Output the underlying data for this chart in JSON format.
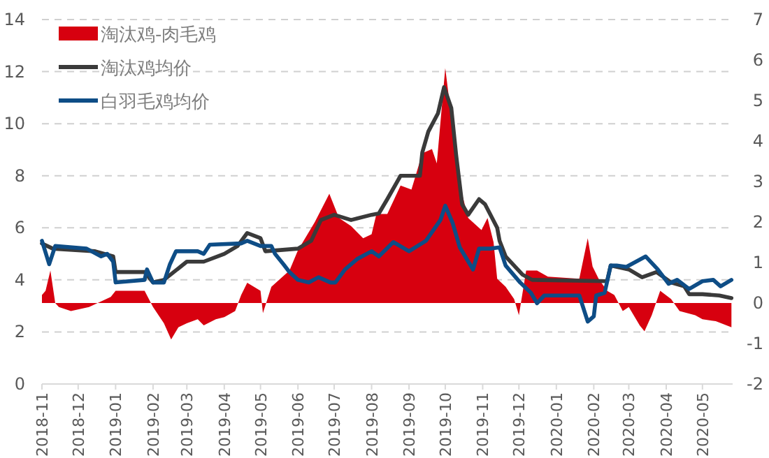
{
  "chart_data": {
    "type": "line",
    "xlim": [
      "2018-11-01",
      "2020-05-26"
    ],
    "xticks": [
      "2018-11",
      "2018-12",
      "2019-01",
      "2019-02",
      "2019-03",
      "2019-04",
      "2019-05",
      "2019-06",
      "2019-07",
      "2019-08",
      "2019-09",
      "2019-10",
      "2019-11",
      "2019-12",
      "2020-01",
      "2020-02",
      "2020-03",
      "2020-04",
      "2020-05"
    ],
    "ylim": [
      0,
      14
    ],
    "yticks": [
      0,
      2,
      4,
      6,
      8,
      10,
      12,
      14
    ],
    "y2lim": [
      -2,
      7
    ],
    "y2ticks": [
      -2,
      -1,
      0,
      1,
      2,
      3,
      4,
      5,
      6,
      7
    ],
    "grid": "y",
    "legend": "top left",
    "series": [
      {
        "name": "淘汰鸡-肉毛鸡",
        "type": "area",
        "axis": "y2",
        "color": "#d7000f",
        "x": [
          "2018-11-01",
          "2018-11-04",
          "2018-11-08",
          "2018-11-12",
          "2018-11-15",
          "2018-11-25",
          "2018-12-10",
          "2018-12-28",
          "2019-01-01",
          "2019-01-25",
          "2019-02-01",
          "2019-02-10",
          "2019-02-16",
          "2019-02-22",
          "2019-03-01",
          "2019-03-10",
          "2019-03-15",
          "2019-03-25",
          "2019-04-01",
          "2019-04-10",
          "2019-04-15",
          "2019-04-20",
          "2019-05-01",
          "2019-05-03",
          "2019-05-10",
          "2019-05-25",
          "2019-06-01",
          "2019-06-15",
          "2019-06-27",
          "2019-07-05",
          "2019-07-15",
          "2019-07-25",
          "2019-08-01",
          "2019-08-05",
          "2019-08-14",
          "2019-08-25",
          "2019-09-03",
          "2019-09-12",
          "2019-09-20",
          "2019-09-24",
          "2019-10-01",
          "2019-10-06",
          "2019-10-10",
          "2019-10-14",
          "2019-10-20",
          "2019-10-31",
          "2019-11-05",
          "2019-11-10",
          "2019-11-13",
          "2019-11-20",
          "2019-11-27",
          "2019-12-01",
          "2019-12-07",
          "2019-12-16",
          "2019-12-25",
          "2020-01-20",
          "2020-01-27",
          "2020-01-31",
          "2020-02-05",
          "2020-02-12",
          "2020-02-18",
          "2020-02-25",
          "2020-03-01",
          "2020-03-10",
          "2020-03-14",
          "2020-03-20",
          "2020-03-27",
          "2020-04-05",
          "2020-04-12",
          "2020-04-25",
          "2020-05-01",
          "2020-05-12",
          "2020-05-25"
        ],
        "values": [
          0.2,
          0.3,
          0.8,
          0.0,
          -0.1,
          -0.2,
          -0.1,
          0.15,
          0.3,
          0.3,
          -0.1,
          -0.5,
          -0.9,
          -0.6,
          -0.5,
          -0.4,
          -0.55,
          -0.4,
          -0.35,
          -0.2,
          0.2,
          0.5,
          0.3,
          -0.25,
          0.4,
          0.8,
          1.3,
          2.0,
          2.7,
          2.1,
          1.9,
          1.6,
          1.7,
          2.2,
          2.2,
          2.9,
          2.8,
          3.7,
          3.8,
          3.45,
          5.8,
          4.6,
          3.45,
          2.8,
          2.1,
          1.8,
          2.1,
          1.5,
          0.6,
          0.4,
          0.1,
          -0.3,
          0.8,
          0.8,
          0.65,
          0.6,
          1.6,
          0.9,
          0.6,
          0.3,
          0.2,
          -0.2,
          -0.1,
          -0.55,
          -0.7,
          -0.3,
          0.3,
          0.1,
          -0.2,
          -0.3,
          -0.4,
          -0.45,
          -0.6
        ]
      },
      {
        "name": "淘汰鸡均价",
        "type": "line",
        "color": "#3a3a3a",
        "x": [
          "2018-11-01",
          "2018-11-10",
          "2018-12-15",
          "2018-12-30",
          "2019-01-01",
          "2019-01-25",
          "2019-02-01",
          "2019-02-10",
          "2019-03-01",
          "2019-03-15",
          "2019-04-01",
          "2019-04-12",
          "2019-04-20",
          "2019-05-01",
          "2019-05-05",
          "2019-06-01",
          "2019-06-12",
          "2019-06-20",
          "2019-07-01",
          "2019-07-15",
          "2019-08-01",
          "2019-08-07",
          "2019-08-14",
          "2019-08-25",
          "2019-09-10",
          "2019-09-12",
          "2019-09-17",
          "2019-09-25",
          "2019-09-30",
          "2019-10-06",
          "2019-10-10",
          "2019-10-15",
          "2019-10-20",
          "2019-10-29",
          "2019-11-03",
          "2019-11-13",
          "2019-11-15",
          "2019-11-20",
          "2019-12-04",
          "2019-12-12",
          "2020-02-12",
          "2020-02-15",
          "2020-03-01",
          "2020-03-12",
          "2020-03-24",
          "2020-04-05",
          "2020-04-16",
          "2020-04-20",
          "2020-05-01",
          "2020-05-15",
          "2020-05-25"
        ],
        "values": [
          5.4,
          5.2,
          5.1,
          4.9,
          4.3,
          4.3,
          3.9,
          4.0,
          4.7,
          4.7,
          5.0,
          5.3,
          5.8,
          5.6,
          5.1,
          5.2,
          5.5,
          6.3,
          6.5,
          6.3,
          6.5,
          6.55,
          7.1,
          8.0,
          8.0,
          8.9,
          9.7,
          10.4,
          11.4,
          10.6,
          8.8,
          6.9,
          6.5,
          7.1,
          6.9,
          6.0,
          5.5,
          4.9,
          4.2,
          4.0,
          3.95,
          4.55,
          4.4,
          4.1,
          4.3,
          3.9,
          3.75,
          3.45,
          3.45,
          3.4,
          3.3
        ]
      },
      {
        "name": "白羽毛鸡均价",
        "type": "line",
        "color": "#0e4d86",
        "x": [
          "2018-11-01",
          "2018-11-07",
          "2018-11-12",
          "2018-12-08",
          "2018-12-20",
          "2018-12-25",
          "2018-12-30",
          "2019-01-01",
          "2019-01-25",
          "2019-01-27",
          "2019-02-01",
          "2019-02-10",
          "2019-02-15",
          "2019-02-20",
          "2019-03-10",
          "2019-03-15",
          "2019-03-20",
          "2019-04-15",
          "2019-04-20",
          "2019-05-01",
          "2019-05-10",
          "2019-05-13",
          "2019-05-20",
          "2019-05-25",
          "2019-06-01",
          "2019-06-10",
          "2019-06-18",
          "2019-06-28",
          "2019-07-02",
          "2019-07-10",
          "2019-07-20",
          "2019-08-01",
          "2019-08-07",
          "2019-08-19",
          "2019-09-01",
          "2019-09-15",
          "2019-09-27",
          "2019-10-01",
          "2019-10-07",
          "2019-10-13",
          "2019-10-24",
          "2019-10-29",
          "2019-11-07",
          "2019-11-15",
          "2019-11-20",
          "2019-12-02",
          "2019-12-11",
          "2019-12-16",
          "2019-12-22",
          "2020-01-20",
          "2020-01-27",
          "2020-02-01",
          "2020-02-03",
          "2020-02-10",
          "2020-02-15",
          "2020-02-20",
          "2020-02-28",
          "2020-03-15",
          "2020-03-25",
          "2020-04-03",
          "2020-04-10",
          "2020-04-20",
          "2020-05-01",
          "2020-05-10",
          "2020-05-16",
          "2020-05-25"
        ],
        "values": [
          5.5,
          4.6,
          5.3,
          5.2,
          4.9,
          5.0,
          4.7,
          3.9,
          4.0,
          4.4,
          3.9,
          3.9,
          4.6,
          5.1,
          5.1,
          5.0,
          5.35,
          5.4,
          5.5,
          5.3,
          5.3,
          5.0,
          4.6,
          4.3,
          4.0,
          3.9,
          4.1,
          3.9,
          3.9,
          4.4,
          4.8,
          5.1,
          4.9,
          5.45,
          5.1,
          5.5,
          6.3,
          6.85,
          6.2,
          5.25,
          4.4,
          5.2,
          5.2,
          5.25,
          4.55,
          3.9,
          3.5,
          3.1,
          3.4,
          3.4,
          2.4,
          2.6,
          3.4,
          3.5,
          4.55,
          4.55,
          4.5,
          4.9,
          4.4,
          3.85,
          4.0,
          3.65,
          3.95,
          4.0,
          3.75,
          4.0
        ]
      }
    ]
  }
}
